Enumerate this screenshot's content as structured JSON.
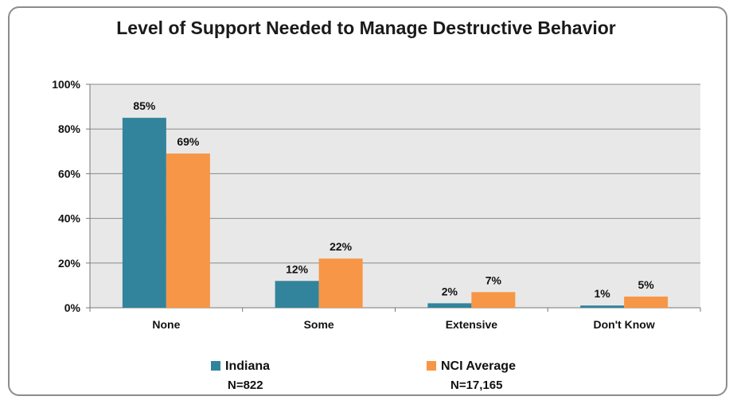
{
  "chart_data": {
    "type": "bar",
    "title": "Level of Support Needed to Manage Destructive Behavior",
    "categories": [
      "None",
      "Some",
      "Extensive",
      "Don't Know"
    ],
    "series": [
      {
        "name": "Indiana",
        "values": [
          85,
          12,
          2,
          1
        ],
        "labels": [
          "85%",
          "12%",
          "2%",
          "1%"
        ],
        "color": "#31849b",
        "note": "N=822"
      },
      {
        "name": "NCI Average",
        "values": [
          69,
          22,
          7,
          5
        ],
        "labels": [
          "69%",
          "22%",
          "7%",
          "5%"
        ],
        "color": "#f79646",
        "note": "N=17,165"
      }
    ],
    "ylim": [
      0,
      100
    ],
    "yticks": [
      0,
      20,
      40,
      60,
      80,
      100
    ],
    "ytick_labels": [
      "0%",
      "20%",
      "40%",
      "60%",
      "80%",
      "100%"
    ],
    "grid": true,
    "plot_background": "#e8e8e8",
    "legend_position": "bottom"
  }
}
